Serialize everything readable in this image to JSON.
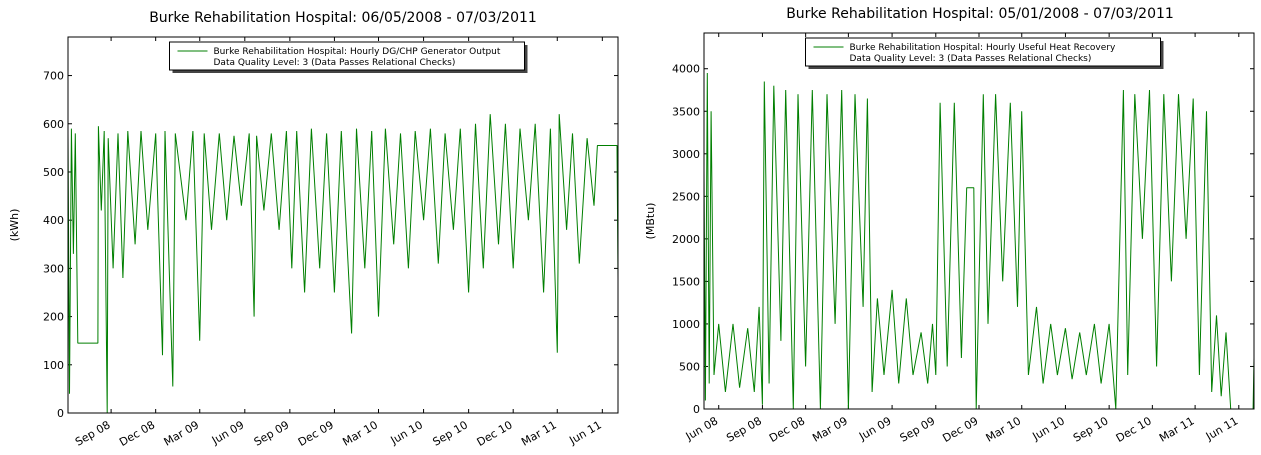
{
  "chart_data": [
    {
      "type": "line",
      "title": "Burke Rehabilitation Hospital: 06/05/2008 - 07/03/2011",
      "y_label": "(kWh)",
      "legend_note": "Data Quality Level: 3 (Data Passes Relational Checks)",
      "legend": "upper center",
      "xlim": [
        "2008-06-05",
        "2011-07-03"
      ],
      "xticks": [
        {
          "value": "2008-09-01",
          "label": "Sep 08"
        },
        {
          "value": "2008-12-01",
          "label": "Dec 08"
        },
        {
          "value": "2009-03-01",
          "label": "Mar 09"
        },
        {
          "value": "2009-06-01",
          "label": "Jun 09"
        },
        {
          "value": "2009-09-01",
          "label": "Sep 09"
        },
        {
          "value": "2009-12-01",
          "label": "Dec 09"
        },
        {
          "value": "2010-03-01",
          "label": "Mar 10"
        },
        {
          "value": "2010-06-01",
          "label": "Jun 10"
        },
        {
          "value": "2010-09-01",
          "label": "Sep 10"
        },
        {
          "value": "2010-12-01",
          "label": "Dec 10"
        },
        {
          "value": "2011-03-01",
          "label": "Mar 11"
        },
        {
          "value": "2011-06-01",
          "label": "Jun 11"
        }
      ],
      "ylim": [
        0,
        780
      ],
      "yticks": [
        0,
        100,
        200,
        300,
        400,
        500,
        600,
        700
      ],
      "x": [
        "2008-06-05",
        "2008-06-08",
        "2008-06-12",
        "2008-06-16",
        "2008-06-20",
        "2008-06-25",
        "2008-08-05",
        "2008-08-06",
        "2008-08-12",
        "2008-08-18",
        "2008-08-24",
        "2008-08-26",
        "2008-09-05",
        "2008-09-15",
        "2008-09-25",
        "2008-10-05",
        "2008-10-20",
        "2008-11-01",
        "2008-11-15",
        "2008-12-01",
        "2008-12-15",
        "2008-12-20",
        "2009-01-05",
        "2009-01-10",
        "2009-02-01",
        "2009-02-15",
        "2009-03-01",
        "2009-03-10",
        "2009-03-25",
        "2009-04-10",
        "2009-04-25",
        "2009-05-10",
        "2009-05-25",
        "2009-06-10",
        "2009-06-20",
        "2009-06-25",
        "2009-07-10",
        "2009-07-25",
        "2009-08-10",
        "2009-08-25",
        "2009-09-05",
        "2009-09-15",
        "2009-10-01",
        "2009-10-15",
        "2009-11-01",
        "2009-11-15",
        "2009-12-01",
        "2009-12-15",
        "2010-01-05",
        "2010-01-15",
        "2010-02-01",
        "2010-02-15",
        "2010-03-01",
        "2010-03-15",
        "2010-04-01",
        "2010-04-15",
        "2010-05-01",
        "2010-05-15",
        "2010-06-01",
        "2010-06-15",
        "2010-07-01",
        "2010-07-15",
        "2010-08-01",
        "2010-08-15",
        "2010-09-01",
        "2010-09-15",
        "2010-10-01",
        "2010-10-15",
        "2010-11-01",
        "2010-11-15",
        "2010-12-01",
        "2010-12-15",
        "2011-01-01",
        "2011-01-15",
        "2011-02-01",
        "2011-02-15",
        "2011-03-01",
        "2011-03-05",
        "2011-03-20",
        "2011-04-01",
        "2011-04-15",
        "2011-05-01",
        "2011-05-15",
        "2011-05-22",
        "2011-07-01",
        "2011-07-03"
      ],
      "series": [
        {
          "name": "Burke Rehabilitation Hospital: Hourly DG/CHP Generator Output",
          "color": "#007f00",
          "values": [
            580,
            40,
            590,
            330,
            580,
            145,
            145,
            595,
            420,
            585,
            0,
            570,
            300,
            580,
            280,
            585,
            350,
            585,
            380,
            580,
            120,
            585,
            55,
            580,
            400,
            585,
            150,
            580,
            380,
            580,
            400,
            575,
            430,
            580,
            200,
            575,
            420,
            580,
            380,
            585,
            300,
            585,
            250,
            590,
            300,
            580,
            250,
            585,
            165,
            590,
            300,
            585,
            200,
            590,
            350,
            580,
            300,
            585,
            400,
            590,
            310,
            580,
            380,
            590,
            250,
            600,
            300,
            620,
            350,
            600,
            300,
            590,
            400,
            600,
            250,
            590,
            125,
            620,
            380,
            580,
            310,
            570,
            430,
            555,
            555,
            280
          ]
        }
      ]
    },
    {
      "type": "line",
      "title": "Burke Rehabilitation Hospital: 05/01/2008 - 07/03/2011",
      "y_label": "(MBtu)",
      "legend_note": "Data Quality Level: 3 (Data Passes Relational Checks)",
      "legend": "upper center",
      "xlim": [
        "2008-05-01",
        "2011-07-03"
      ],
      "xticks": [
        {
          "value": "2008-06-01",
          "label": "Jun 08"
        },
        {
          "value": "2008-09-01",
          "label": "Sep 08"
        },
        {
          "value": "2008-12-01",
          "label": "Dec 08"
        },
        {
          "value": "2009-03-01",
          "label": "Mar 09"
        },
        {
          "value": "2009-06-01",
          "label": "Jun 09"
        },
        {
          "value": "2009-09-01",
          "label": "Sep 09"
        },
        {
          "value": "2009-12-01",
          "label": "Dec 09"
        },
        {
          "value": "2010-03-01",
          "label": "Mar 10"
        },
        {
          "value": "2010-06-01",
          "label": "Jun 10"
        },
        {
          "value": "2010-09-01",
          "label": "Sep 10"
        },
        {
          "value": "2010-12-01",
          "label": "Dec 10"
        },
        {
          "value": "2011-03-01",
          "label": "Mar 11"
        },
        {
          "value": "2011-06-01",
          "label": "Jun 11"
        }
      ],
      "ylim": [
        0,
        4420
      ],
      "yticks": [
        0,
        500,
        1000,
        1500,
        2000,
        2500,
        3000,
        3500,
        4000
      ],
      "x": [
        "2008-05-01",
        "2008-05-04",
        "2008-05-08",
        "2008-05-12",
        "2008-05-16",
        "2008-05-22",
        "2008-06-01",
        "2008-06-15",
        "2008-07-01",
        "2008-07-15",
        "2008-08-01",
        "2008-08-15",
        "2008-08-25",
        "2008-09-01",
        "2008-09-05",
        "2008-09-15",
        "2008-09-25",
        "2008-10-10",
        "2008-10-20",
        "2008-11-05",
        "2008-11-15",
        "2008-12-01",
        "2008-12-15",
        "2009-01-01",
        "2009-01-15",
        "2009-02-01",
        "2009-02-15",
        "2009-03-01",
        "2009-03-15",
        "2009-04-01",
        "2009-04-10",
        "2009-04-20",
        "2009-05-01",
        "2009-05-15",
        "2009-06-01",
        "2009-06-15",
        "2009-07-01",
        "2009-07-15",
        "2009-08-01",
        "2009-08-15",
        "2009-08-25",
        "2009-09-01",
        "2009-09-10",
        "2009-09-25",
        "2009-10-10",
        "2009-10-25",
        "2009-11-05",
        "2009-11-20",
        "2009-11-25",
        "2009-12-10",
        "2009-12-20",
        "2010-01-05",
        "2010-01-20",
        "2010-02-05",
        "2010-02-20",
        "2010-03-01",
        "2010-03-15",
        "2010-04-01",
        "2010-04-15",
        "2010-05-01",
        "2010-05-15",
        "2010-06-01",
        "2010-06-15",
        "2010-07-01",
        "2010-07-15",
        "2010-08-01",
        "2010-08-15",
        "2010-09-01",
        "2010-09-15",
        "2010-10-01",
        "2010-10-10",
        "2010-10-25",
        "2010-11-10",
        "2010-11-25",
        "2010-12-10",
        "2010-12-25",
        "2011-01-10",
        "2011-01-25",
        "2011-02-10",
        "2011-02-25",
        "2011-03-10",
        "2011-03-25",
        "2011-04-05",
        "2011-04-15",
        "2011-04-25",
        "2011-05-05",
        "2011-05-15",
        "2011-06-01",
        "2011-06-20",
        "2011-07-01",
        "2011-07-03"
      ],
      "series": [
        {
          "name": "Burke Rehabilitation Hospital: Hourly Useful Heat Recovery",
          "color": "#007f00",
          "values": [
            2800,
            100,
            3950,
            300,
            3500,
            400,
            1000,
            200,
            1000,
            250,
            950,
            200,
            1200,
            50,
            3850,
            300,
            3800,
            800,
            3750,
            0,
            3700,
            500,
            3750,
            0,
            3700,
            1000,
            3750,
            0,
            3700,
            1200,
            3650,
            200,
            1300,
            400,
            1400,
            300,
            1300,
            400,
            900,
            300,
            1000,
            400,
            3600,
            500,
            3600,
            600,
            2600,
            2600,
            0,
            3700,
            1000,
            3700,
            1500,
            3600,
            1200,
            3500,
            400,
            1200,
            300,
            1000,
            400,
            950,
            350,
            900,
            400,
            1000,
            300,
            1000,
            0,
            3750,
            400,
            3700,
            2000,
            3750,
            500,
            3700,
            1500,
            3700,
            2000,
            3650,
            400,
            3500,
            200,
            1100,
            150,
            900,
            0,
            0,
            0,
            0,
            600
          ]
        }
      ]
    }
  ]
}
